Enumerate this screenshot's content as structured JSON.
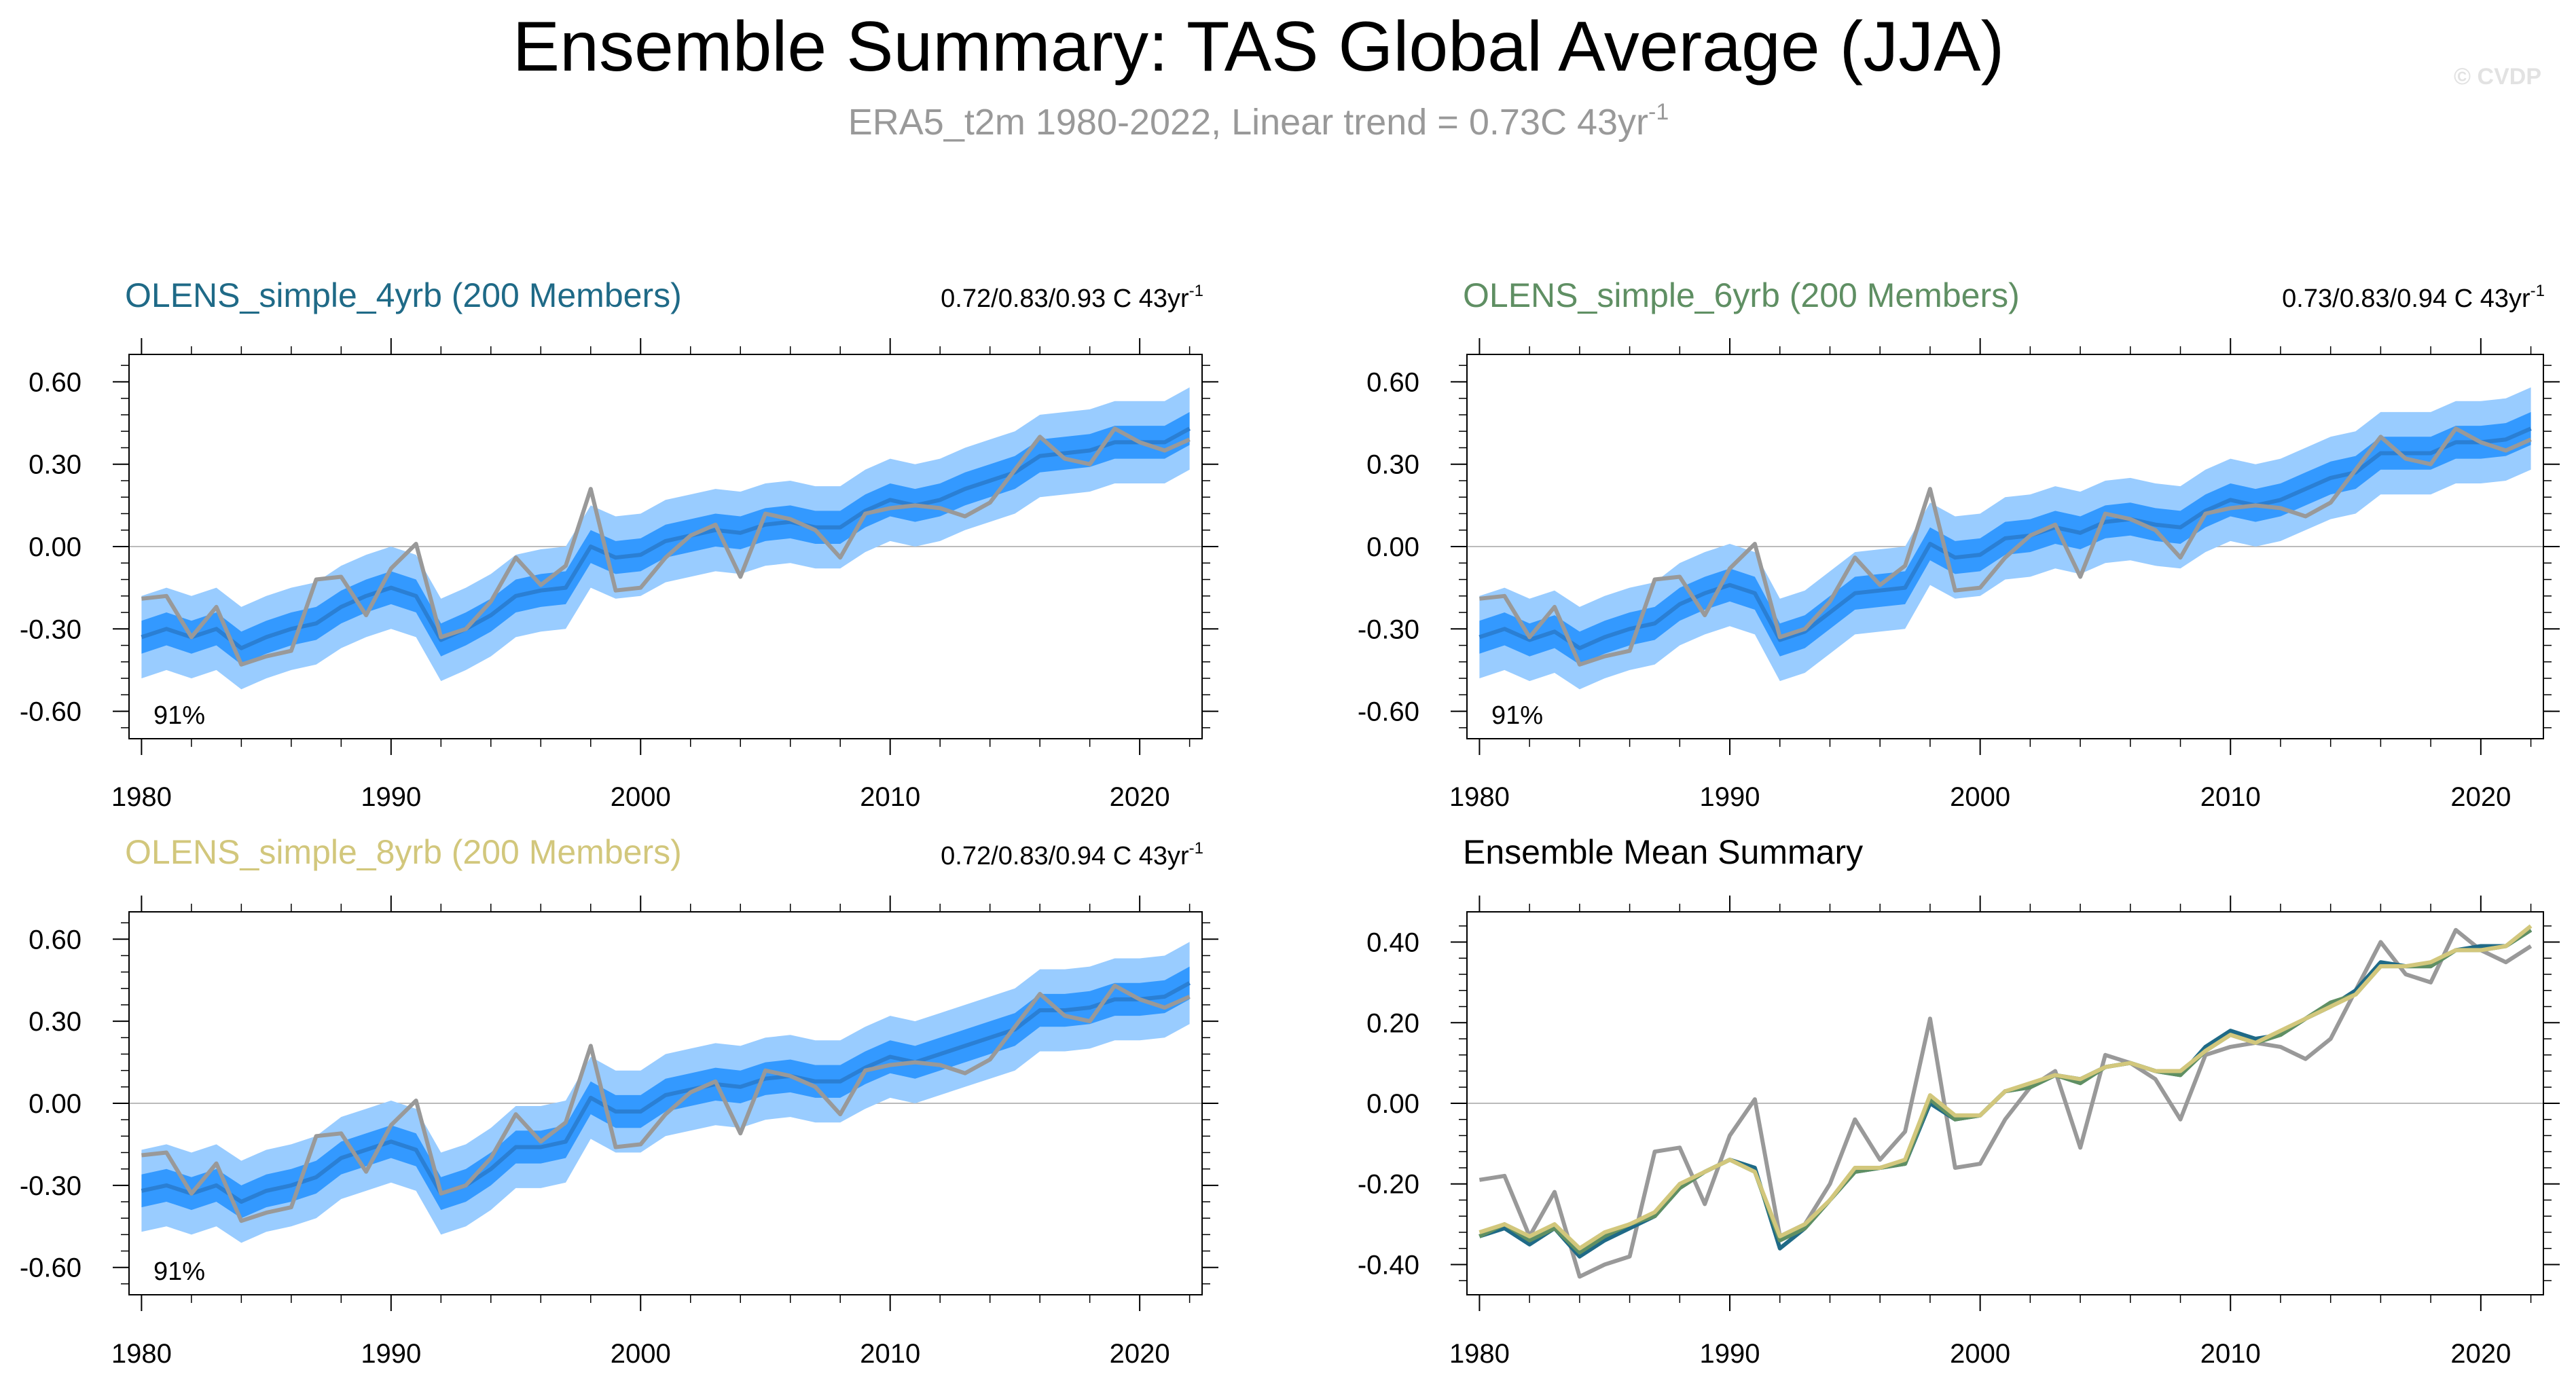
{
  "title": "Ensemble Summary: TAS Global Average (JJA)",
  "subtitle": {
    "main": "ERA5_t2m 1980-2022, Linear trend = 0.73C 43yr",
    "superscript": "-1"
  },
  "watermark": "© CVDP",
  "colors": {
    "outer_band": "#99ccff",
    "inner_band": "#3399ff",
    "ens_mean": "#2a7fd4",
    "obs": "#999999",
    "zero_line": "#bbbbbb",
    "series_4yrb": "#1f6a87",
    "series_6yrb": "#5f8f63",
    "series_8yrb": "#d2c77c"
  },
  "chart_data": [
    {
      "type": "area",
      "panel": "top-left",
      "title": "OLENS_simple_4yrb (200 Members)",
      "title_color": "#1f6a87",
      "trend_label": "0.72/0.83/0.93 C 43yr",
      "trend_sup": "-1",
      "percent_label": "91%",
      "ylim": [
        -0.7,
        0.7
      ],
      "yticks": [
        -0.6,
        -0.3,
        0.0,
        0.3,
        0.6
      ],
      "ytick_labels": [
        "-0.60",
        "-0.30",
        "0.00",
        "0.30",
        "0.60"
      ],
      "xlim": [
        1979.5,
        2022.5
      ],
      "xticks": [
        1980,
        1990,
        2000,
        2010,
        2020
      ],
      "xtick_labels": [
        "1980",
        "1990",
        "2000",
        "2010",
        "2020"
      ],
      "x": [
        1980,
        1981,
        1982,
        1983,
        1984,
        1985,
        1986,
        1987,
        1988,
        1989,
        1990,
        1991,
        1992,
        1993,
        1994,
        1995,
        1996,
        1997,
        1998,
        1999,
        2000,
        2001,
        2002,
        2003,
        2004,
        2005,
        2006,
        2007,
        2008,
        2009,
        2010,
        2011,
        2012,
        2013,
        2014,
        2015,
        2016,
        2017,
        2018,
        2019,
        2020,
        2021,
        2022
      ],
      "mean": [
        -0.33,
        -0.3,
        -0.33,
        -0.3,
        -0.37,
        -0.33,
        -0.3,
        -0.28,
        -0.22,
        -0.18,
        -0.15,
        -0.18,
        -0.34,
        -0.3,
        -0.25,
        -0.18,
        -0.16,
        -0.15,
        0.0,
        -0.04,
        -0.03,
        0.02,
        0.04,
        0.06,
        0.05,
        0.08,
        0.09,
        0.07,
        0.07,
        0.13,
        0.17,
        0.15,
        0.17,
        0.21,
        0.24,
        0.27,
        0.33,
        0.34,
        0.35,
        0.38,
        0.38,
        0.38,
        0.43
      ],
      "spread_inner": 0.06,
      "spread_outer": 0.15,
      "obs": [
        -0.19,
        -0.18,
        -0.33,
        -0.22,
        -0.43,
        -0.4,
        -0.38,
        -0.12,
        -0.11,
        -0.25,
        -0.08,
        0.01,
        -0.33,
        -0.3,
        -0.2,
        -0.04,
        -0.14,
        -0.07,
        0.21,
        -0.16,
        -0.15,
        -0.04,
        0.04,
        0.08,
        -0.11,
        0.12,
        0.1,
        0.06,
        -0.04,
        0.12,
        0.14,
        0.15,
        0.14,
        0.11,
        0.16,
        0.28,
        0.4,
        0.32,
        0.3,
        0.43,
        0.38,
        0.35,
        0.39
      ]
    },
    {
      "type": "area",
      "panel": "top-right",
      "title": "OLENS_simple_6yrb (200 Members)",
      "title_color": "#5f8f63",
      "trend_label": "0.73/0.83/0.94 C 43yr",
      "trend_sup": "-1",
      "percent_label": "91%",
      "ylim": [
        -0.7,
        0.7
      ],
      "yticks": [
        -0.6,
        -0.3,
        0.0,
        0.3,
        0.6
      ],
      "ytick_labels": [
        "-0.60",
        "-0.30",
        "0.00",
        "0.30",
        "0.60"
      ],
      "xlim": [
        1979.5,
        2022.5
      ],
      "xticks": [
        1980,
        1990,
        2000,
        2010,
        2020
      ],
      "xtick_labels": [
        "1980",
        "1990",
        "2000",
        "2010",
        "2020"
      ],
      "x": [
        1980,
        1981,
        1982,
        1983,
        1984,
        1985,
        1986,
        1987,
        1988,
        1989,
        1990,
        1991,
        1992,
        1993,
        1994,
        1995,
        1996,
        1997,
        1998,
        1999,
        2000,
        2001,
        2002,
        2003,
        2004,
        2005,
        2006,
        2007,
        2008,
        2009,
        2010,
        2011,
        2012,
        2013,
        2014,
        2015,
        2016,
        2017,
        2018,
        2019,
        2020,
        2021,
        2022
      ],
      "mean": [
        -0.33,
        -0.3,
        -0.34,
        -0.31,
        -0.37,
        -0.33,
        -0.3,
        -0.28,
        -0.21,
        -0.17,
        -0.14,
        -0.17,
        -0.34,
        -0.31,
        -0.24,
        -0.17,
        -0.16,
        -0.15,
        0.01,
        -0.04,
        -0.03,
        0.03,
        0.04,
        0.07,
        0.05,
        0.09,
        0.1,
        0.08,
        0.07,
        0.13,
        0.17,
        0.15,
        0.17,
        0.21,
        0.25,
        0.27,
        0.34,
        0.34,
        0.34,
        0.38,
        0.38,
        0.39,
        0.43
      ],
      "spread_inner": 0.06,
      "spread_outer": 0.15,
      "obs": [
        -0.19,
        -0.18,
        -0.33,
        -0.22,
        -0.43,
        -0.4,
        -0.38,
        -0.12,
        -0.11,
        -0.25,
        -0.08,
        0.01,
        -0.33,
        -0.3,
        -0.2,
        -0.04,
        -0.14,
        -0.07,
        0.21,
        -0.16,
        -0.15,
        -0.04,
        0.04,
        0.08,
        -0.11,
        0.12,
        0.1,
        0.06,
        -0.04,
        0.12,
        0.14,
        0.15,
        0.14,
        0.11,
        0.16,
        0.28,
        0.4,
        0.32,
        0.3,
        0.43,
        0.38,
        0.35,
        0.39
      ]
    },
    {
      "type": "area",
      "panel": "bottom-left",
      "title": "OLENS_simple_8yrb (200 Members)",
      "title_color": "#d2c77c",
      "trend_label": "0.72/0.83/0.94 C 43yr",
      "trend_sup": "-1",
      "percent_label": "91%",
      "ylim": [
        -0.7,
        0.7
      ],
      "yticks": [
        -0.6,
        -0.3,
        0.0,
        0.3,
        0.6
      ],
      "ytick_labels": [
        "-0.60",
        "-0.30",
        "0.00",
        "0.30",
        "0.60"
      ],
      "xlim": [
        1979.5,
        2022.5
      ],
      "xticks": [
        1980,
        1990,
        2000,
        2010,
        2020
      ],
      "xtick_labels": [
        "1980",
        "1990",
        "2000",
        "2010",
        "2020"
      ],
      "x": [
        1980,
        1981,
        1982,
        1983,
        1984,
        1985,
        1986,
        1987,
        1988,
        1989,
        1990,
        1991,
        1992,
        1993,
        1994,
        1995,
        1996,
        1997,
        1998,
        1999,
        2000,
        2001,
        2002,
        2003,
        2004,
        2005,
        2006,
        2007,
        2008,
        2009,
        2010,
        2011,
        2012,
        2013,
        2014,
        2015,
        2016,
        2017,
        2018,
        2019,
        2020,
        2021,
        2022
      ],
      "mean": [
        -0.32,
        -0.3,
        -0.33,
        -0.3,
        -0.36,
        -0.32,
        -0.3,
        -0.27,
        -0.2,
        -0.17,
        -0.14,
        -0.17,
        -0.33,
        -0.3,
        -0.24,
        -0.16,
        -0.16,
        -0.14,
        0.02,
        -0.03,
        -0.03,
        0.03,
        0.05,
        0.07,
        0.06,
        0.09,
        0.1,
        0.08,
        0.08,
        0.13,
        0.17,
        0.15,
        0.18,
        0.21,
        0.24,
        0.27,
        0.34,
        0.34,
        0.35,
        0.38,
        0.38,
        0.39,
        0.44
      ],
      "spread_inner": 0.06,
      "spread_outer": 0.15,
      "obs": [
        -0.19,
        -0.18,
        -0.33,
        -0.22,
        -0.43,
        -0.4,
        -0.38,
        -0.12,
        -0.11,
        -0.25,
        -0.08,
        0.01,
        -0.33,
        -0.3,
        -0.2,
        -0.04,
        -0.14,
        -0.07,
        0.21,
        -0.16,
        -0.15,
        -0.04,
        0.04,
        0.08,
        -0.11,
        0.12,
        0.1,
        0.06,
        -0.04,
        0.12,
        0.14,
        0.15,
        0.14,
        0.11,
        0.16,
        0.28,
        0.4,
        0.32,
        0.3,
        0.43,
        0.38,
        0.35,
        0.39
      ]
    },
    {
      "type": "line",
      "panel": "bottom-right",
      "title": "Ensemble Mean Summary",
      "title_color": "#000000",
      "ylim": [
        -0.475,
        0.475
      ],
      "yticks": [
        -0.4,
        -0.2,
        0.0,
        0.2,
        0.4
      ],
      "ytick_labels": [
        "-0.40",
        "-0.20",
        "0.00",
        "0.20",
        "0.40"
      ],
      "xlim": [
        1979.5,
        2022.5
      ],
      "xticks": [
        1980,
        1990,
        2000,
        2010,
        2020
      ],
      "xtick_labels": [
        "1980",
        "1990",
        "2000",
        "2010",
        "2020"
      ],
      "x": [
        1980,
        1981,
        1982,
        1983,
        1984,
        1985,
        1986,
        1987,
        1988,
        1989,
        1990,
        1991,
        1992,
        1993,
        1994,
        1995,
        1996,
        1997,
        1998,
        1999,
        2000,
        2001,
        2002,
        2003,
        2004,
        2005,
        2006,
        2007,
        2008,
        2009,
        2010,
        2011,
        2012,
        2013,
        2014,
        2015,
        2016,
        2017,
        2018,
        2019,
        2020,
        2021,
        2022
      ],
      "series": [
        {
          "key": "obs",
          "color": "#999999",
          "values": [
            -0.19,
            -0.18,
            -0.33,
            -0.22,
            -0.43,
            -0.4,
            -0.38,
            -0.12,
            -0.11,
            -0.25,
            -0.08,
            0.01,
            -0.33,
            -0.3,
            -0.2,
            -0.04,
            -0.14,
            -0.07,
            0.21,
            -0.16,
            -0.15,
            -0.04,
            0.04,
            0.08,
            -0.11,
            0.12,
            0.1,
            0.06,
            -0.04,
            0.12,
            0.14,
            0.15,
            0.14,
            0.11,
            0.16,
            0.28,
            0.4,
            0.32,
            0.3,
            0.43,
            0.38,
            0.35,
            0.39
          ]
        },
        {
          "key": "4yrb",
          "color": "#1f6a87",
          "values": [
            -0.33,
            -0.31,
            -0.35,
            -0.31,
            -0.38,
            -0.34,
            -0.31,
            -0.28,
            -0.21,
            -0.17,
            -0.14,
            -0.16,
            -0.36,
            -0.31,
            -0.24,
            -0.17,
            -0.16,
            -0.15,
            0.0,
            -0.04,
            -0.03,
            0.03,
            0.04,
            0.07,
            0.06,
            0.09,
            0.1,
            0.08,
            0.07,
            0.14,
            0.18,
            0.16,
            0.17,
            0.21,
            0.24,
            0.28,
            0.35,
            0.34,
            0.34,
            0.38,
            0.39,
            0.39,
            0.43
          ]
        },
        {
          "key": "6yrb",
          "color": "#5f8f63",
          "values": [
            -0.33,
            -0.3,
            -0.34,
            -0.31,
            -0.37,
            -0.33,
            -0.3,
            -0.28,
            -0.21,
            -0.17,
            -0.14,
            -0.17,
            -0.34,
            -0.31,
            -0.24,
            -0.17,
            -0.16,
            -0.15,
            0.01,
            -0.04,
            -0.03,
            0.03,
            0.04,
            0.07,
            0.05,
            0.09,
            0.1,
            0.08,
            0.07,
            0.13,
            0.17,
            0.15,
            0.17,
            0.21,
            0.25,
            0.27,
            0.34,
            0.34,
            0.34,
            0.38,
            0.38,
            0.39,
            0.43
          ]
        },
        {
          "key": "8yrb",
          "color": "#d2c77c",
          "values": [
            -0.32,
            -0.3,
            -0.33,
            -0.3,
            -0.36,
            -0.32,
            -0.3,
            -0.27,
            -0.2,
            -0.17,
            -0.14,
            -0.17,
            -0.33,
            -0.3,
            -0.24,
            -0.16,
            -0.16,
            -0.14,
            0.02,
            -0.03,
            -0.03,
            0.03,
            0.05,
            0.07,
            0.06,
            0.09,
            0.1,
            0.08,
            0.08,
            0.13,
            0.17,
            0.15,
            0.18,
            0.21,
            0.24,
            0.27,
            0.34,
            0.34,
            0.35,
            0.38,
            0.38,
            0.39,
            0.44
          ]
        }
      ]
    }
  ]
}
